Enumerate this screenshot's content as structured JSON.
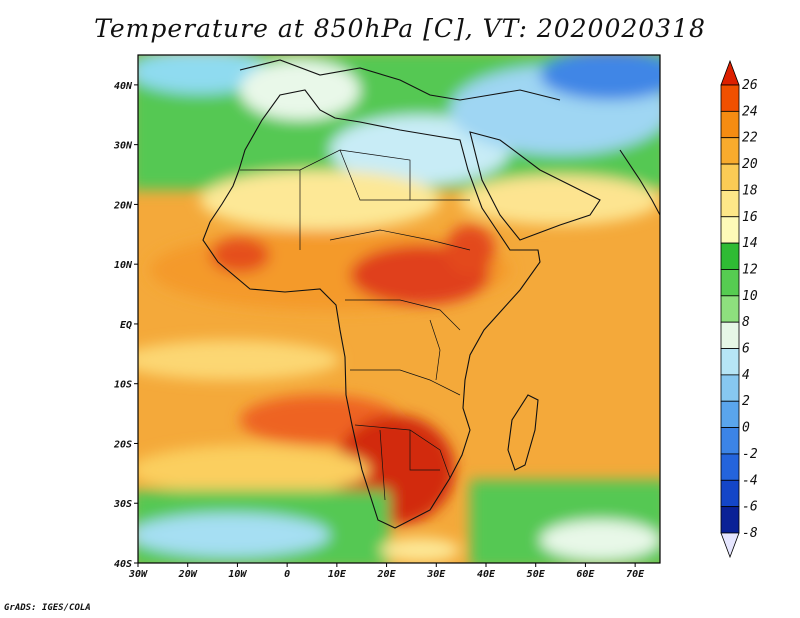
{
  "title": "Temperature at 850hPa [C], VT: 2020020318",
  "credit": "GrADS: IGES/COLA",
  "map": {
    "lon_range": [
      -30,
      75
    ],
    "lat_range": [
      -40,
      45
    ],
    "lon_ticks": [
      {
        "value": -30,
        "label": "30W"
      },
      {
        "value": -20,
        "label": "20W"
      },
      {
        "value": -10,
        "label": "10W"
      },
      {
        "value": 0,
        "label": "0"
      },
      {
        "value": 10,
        "label": "10E"
      },
      {
        "value": 20,
        "label": "20E"
      },
      {
        "value": 30,
        "label": "30E"
      },
      {
        "value": 40,
        "label": "40E"
      },
      {
        "value": 50,
        "label": "50E"
      },
      {
        "value": 60,
        "label": "60E"
      },
      {
        "value": 70,
        "label": "70E"
      }
    ],
    "lat_ticks": [
      {
        "value": 40,
        "label": "40N"
      },
      {
        "value": 30,
        "label": "30N"
      },
      {
        "value": 20,
        "label": "20N"
      },
      {
        "value": 10,
        "label": "10N"
      },
      {
        "value": 0,
        "label": "EQ"
      },
      {
        "value": -10,
        "label": "10S"
      },
      {
        "value": -20,
        "label": "20S"
      },
      {
        "value": -30,
        "label": "30S"
      },
      {
        "value": -40,
        "label": "40S"
      }
    ]
  },
  "colorbar": {
    "levels": [
      "26",
      "24",
      "22",
      "20",
      "18",
      "16",
      "14",
      "12",
      "10",
      "8",
      "6",
      "4",
      "2",
      "0",
      "-2",
      "-4",
      "-6",
      "-8"
    ],
    "colors": [
      "#dd2000",
      "#f05000",
      "#f58c12",
      "#f8ab2d",
      "#fbcb55",
      "#fde788",
      "#fdfab8",
      "#2fbb34",
      "#56cc51",
      "#8ee07e",
      "#e6f7e6",
      "#b6e5f5",
      "#87c8f0",
      "#5aa5ec",
      "#3c84e6",
      "#2464dc",
      "#1446c8",
      "#0a2196",
      "#e6e6ff"
    ]
  },
  "colors": {
    "hot_core": "#d12a0a",
    "hot": "#ee5a1d",
    "warm": "#f6a02d",
    "mild": "#fbd067",
    "cool_green": "#4cc24c",
    "cold_blue": "#3d86e8",
    "ocean_warm": "#f6b64a"
  }
}
